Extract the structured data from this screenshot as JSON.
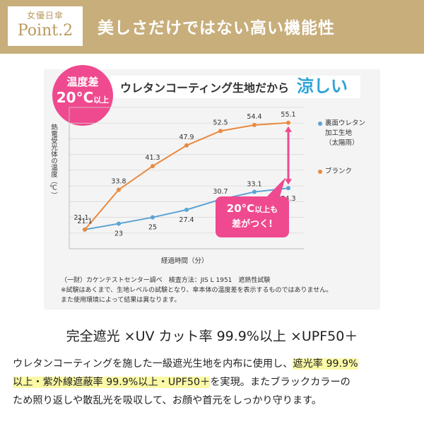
{
  "header": {
    "badge_sub": "女優日傘",
    "badge_main": "Point.2",
    "title": "美しさだけではない高い機能性"
  },
  "temp_badge": {
    "top": "温度差",
    "bottom_main": "20°C",
    "bottom_small": "以上"
  },
  "headline": {
    "text": "ウレタンコーティング生地だから",
    "accent": "涼しい"
  },
  "callout": {
    "line1_main": "20°C",
    "line1_small": "以上も",
    "line2": "差がつく!"
  },
  "colors": {
    "header_bg": "#c7ae7b",
    "orange_series": "#e98a40",
    "blue_series": "#5aa3d4",
    "pink_accent": "#ef4a8f",
    "headline_accent": "#2ea3d6"
  },
  "chart_data": {
    "type": "line",
    "title": "",
    "xlabel": "経過時間（分）",
    "ylabel": "熱電受光体の温度（℃）",
    "x": [
      0,
      1,
      2,
      3,
      4,
      5,
      6
    ],
    "ylim": [
      15,
      60
    ],
    "grid": true,
    "legend_position": "right",
    "series": [
      {
        "name": "裏面ウレタン加工生地（太陽雨）",
        "color": "#5aa3d4",
        "values": [
          21.1,
          23,
          25,
          27.4,
          30.7,
          33.1,
          34.3
        ]
      },
      {
        "name": "ブランク",
        "color": "#e98a40",
        "values": [
          21.1,
          33.8,
          41.3,
          47.9,
          52.5,
          54.4,
          55.1
        ]
      }
    ]
  },
  "legend": {
    "item1_lines": [
      "裏面ウレタン",
      "加工生地",
      "（太陽雨）"
    ],
    "item2": "ブランク"
  },
  "notes": [
    "（一財）カケンテストセンター調べ　検査方法：JIS L 1951　遮熱性試験",
    "※試験はあくまで、生地レベルの試験となり、傘本体の温度差を表示するものではありません。",
    "また使用環境によって結果は異なります。"
  ],
  "feature_title": "完全遮光 ×UV カット率 99.9%以上 ×UPF50＋",
  "body": {
    "line1_a": "ウレタンコーティングを施した一級遮光生地を内布に使用し、",
    "line1_hl": "遮光率 99.9%",
    "line2_hl": "以上・紫外線遮蔽率 99.9%以上・UPF50＋",
    "line2_b": "を実現。またブラックカラーの",
    "line3": "ため照り返しや散乱光を吸収して、お顔や首元をしっかり守ります。"
  }
}
